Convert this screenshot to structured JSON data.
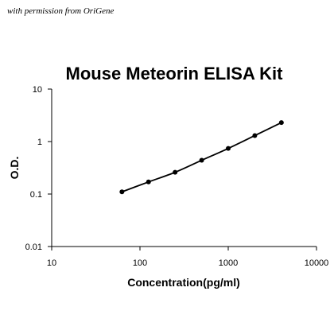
{
  "watermark": "with permission from OriGene",
  "chart_data": {
    "type": "scatter",
    "title": "Mouse Meteorin ELISA Kit",
    "xlabel": "Concentration(pg/ml)",
    "ylabel": "O.D.",
    "xscale": "log",
    "yscale": "log",
    "xlim": [
      10,
      10000
    ],
    "ylim": [
      0.01,
      10
    ],
    "x_ticks": [
      10,
      100,
      1000,
      10000
    ],
    "x_tick_labels": [
      "10",
      "100",
      "1000",
      "10000"
    ],
    "y_ticks": [
      0.01,
      0.1,
      1,
      10
    ],
    "y_tick_labels": [
      "0.01",
      "0.1",
      "1",
      "10"
    ],
    "grid": false,
    "series": [
      {
        "x": [
          62.5,
          125,
          250,
          500,
          1000,
          2000,
          4000
        ],
        "y": [
          0.11,
          0.17,
          0.26,
          0.44,
          0.74,
          1.3,
          2.3
        ]
      }
    ],
    "trendline": true,
    "colors": {
      "marker": "#000000",
      "line": "#000000"
    }
  }
}
